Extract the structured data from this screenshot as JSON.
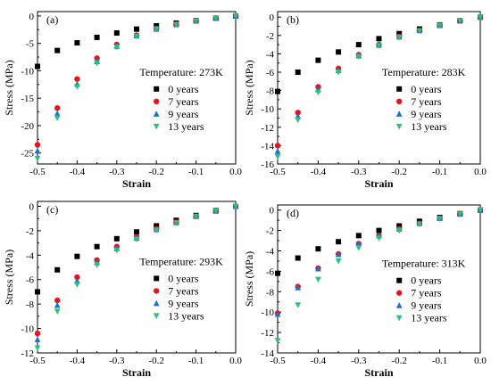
{
  "figure": {
    "series_style": [
      {
        "name": "0 years",
        "color": "#000000",
        "marker": "square"
      },
      {
        "name": "7 years",
        "color": "#e8141c",
        "marker": "circle"
      },
      {
        "name": "9 years",
        "color": "#1f6fd1",
        "marker": "triangle-up"
      },
      {
        "name": "13 years",
        "color": "#2bbf80",
        "marker": "triangle-down"
      }
    ]
  },
  "chart_data": [
    {
      "type": "scatter",
      "panel_label": "(a)",
      "title": "",
      "annotation": "Temperature: 273K",
      "xlabel": "Strain",
      "ylabel": "Stress (MPa)",
      "xlim": [
        -0.5,
        0.0
      ],
      "ylim": [
        -27,
        0.8
      ],
      "xticks": [
        -0.5,
        -0.4,
        -0.3,
        -0.2,
        -0.1,
        0.0
      ],
      "xtick_labels": [
        "-0.5",
        "-0.4",
        "-0.3",
        "-0.2",
        "-0.1",
        "0.0"
      ],
      "yticks": [
        -25,
        -20,
        -15,
        -10,
        -5,
        0
      ],
      "ytick_labels": [
        "-25",
        "-20",
        "-15",
        "-10",
        "-5",
        "0"
      ],
      "legend_position": "right",
      "x": [
        -0.5,
        -0.45,
        -0.4,
        -0.35,
        -0.3,
        -0.25,
        -0.2,
        -0.15,
        -0.1,
        -0.05,
        0.0
      ],
      "series": [
        {
          "name": "0 years",
          "values": [
            -9.2,
            -6.3,
            -4.9,
            -3.9,
            -3.1,
            -2.4,
            -1.8,
            -1.3,
            -0.85,
            -0.4,
            0.0
          ]
        },
        {
          "name": "7 years",
          "values": [
            -23.5,
            -16.8,
            -11.5,
            -7.7,
            -5.2,
            -3.5,
            -2.3,
            -1.5,
            -0.9,
            -0.4,
            0.0
          ]
        },
        {
          "name": "9 years",
          "values": [
            -24.6,
            -17.8,
            -12.4,
            -8.3,
            -5.5,
            -3.6,
            -2.4,
            -1.55,
            -0.9,
            -0.4,
            0.0
          ]
        },
        {
          "name": "13 years",
          "values": [
            -26.0,
            -18.6,
            -12.9,
            -8.6,
            -5.7,
            -3.7,
            -2.4,
            -1.55,
            -0.9,
            -0.4,
            0.0
          ]
        }
      ]
    },
    {
      "type": "scatter",
      "panel_label": "(b)",
      "title": "",
      "annotation": "Temperature: 283K",
      "xlabel": "Strain",
      "ylabel": "Stress (MPa)",
      "xlim": [
        -0.5,
        0.0
      ],
      "ylim": [
        -16,
        0.6
      ],
      "xticks": [
        -0.5,
        -0.4,
        -0.3,
        -0.2,
        -0.1,
        0.0
      ],
      "xtick_labels": [
        "-0.5",
        "-0.4",
        "-0.3",
        "-0.2",
        "-0.1",
        "0.0"
      ],
      "yticks": [
        -16,
        -14,
        -12,
        -10,
        -8,
        -6,
        -4,
        -2,
        0
      ],
      "ytick_labels": [
        "-16",
        "-14",
        "-12",
        "-10",
        "-8",
        "-6",
        "-4",
        "-2",
        "0"
      ],
      "legend_position": "right",
      "x": [
        -0.5,
        -0.45,
        -0.4,
        -0.35,
        -0.3,
        -0.25,
        -0.2,
        -0.15,
        -0.1,
        -0.05,
        0.0
      ],
      "series": [
        {
          "name": "0 years",
          "values": [
            -8.1,
            -6.0,
            -4.7,
            -3.8,
            -3.0,
            -2.35,
            -1.8,
            -1.3,
            -0.85,
            -0.4,
            0.0
          ]
        },
        {
          "name": "7 years",
          "values": [
            -14.0,
            -10.4,
            -7.6,
            -5.6,
            -4.1,
            -3.0,
            -2.1,
            -1.45,
            -0.9,
            -0.4,
            0.0
          ]
        },
        {
          "name": "9 years",
          "values": [
            -14.6,
            -10.8,
            -7.9,
            -5.8,
            -4.2,
            -3.05,
            -2.15,
            -1.45,
            -0.9,
            -0.4,
            0.0
          ]
        },
        {
          "name": "13 years",
          "values": [
            -15.2,
            -11.2,
            -8.2,
            -6.0,
            -4.3,
            -3.1,
            -2.2,
            -1.5,
            -0.9,
            -0.4,
            0.0
          ]
        }
      ]
    },
    {
      "type": "scatter",
      "panel_label": "(c)",
      "title": "",
      "annotation": "Temperature: 293K",
      "xlabel": "Strain",
      "ylabel": "Stress (MPa)",
      "xlim": [
        -0.5,
        0.0
      ],
      "ylim": [
        -12,
        0.4
      ],
      "xticks": [
        -0.5,
        -0.4,
        -0.3,
        -0.2,
        -0.1,
        0.0
      ],
      "xtick_labels": [
        "-0.5",
        "-0.4",
        "-0.3",
        "-0.2",
        "-0.1",
        "0.0"
      ],
      "yticks": [
        -12,
        -10,
        -8,
        -6,
        -4,
        -2,
        0
      ],
      "ytick_labels": [
        "-12",
        "-10",
        "-8",
        "-6",
        "-4",
        "-2",
        "0"
      ],
      "legend_position": "right",
      "x": [
        -0.5,
        -0.45,
        -0.4,
        -0.35,
        -0.3,
        -0.25,
        -0.2,
        -0.15,
        -0.1,
        -0.05,
        0.0
      ],
      "series": [
        {
          "name": "0 years",
          "values": [
            -7.0,
            -5.2,
            -4.1,
            -3.3,
            -2.65,
            -2.1,
            -1.6,
            -1.15,
            -0.75,
            -0.35,
            0.0
          ]
        },
        {
          "name": "7 years",
          "values": [
            -10.4,
            -7.7,
            -5.8,
            -4.4,
            -3.3,
            -2.5,
            -1.85,
            -1.3,
            -0.8,
            -0.38,
            0.0
          ]
        },
        {
          "name": "9 years",
          "values": [
            -10.9,
            -8.1,
            -6.1,
            -4.6,
            -3.45,
            -2.6,
            -1.9,
            -1.33,
            -0.82,
            -0.38,
            0.0
          ]
        },
        {
          "name": "13 years",
          "values": [
            -11.6,
            -8.6,
            -6.4,
            -4.8,
            -3.6,
            -2.7,
            -1.95,
            -1.35,
            -0.83,
            -0.38,
            0.0
          ]
        }
      ]
    },
    {
      "type": "scatter",
      "panel_label": "(d)",
      "title": "",
      "annotation": "Temperature: 313K",
      "xlabel": "Strain",
      "ylabel": "Stress (MPa)",
      "xlim": [
        -0.5,
        0.0
      ],
      "ylim": [
        -14,
        0.5
      ],
      "xticks": [
        -0.5,
        -0.4,
        -0.3,
        -0.2,
        -0.1,
        0.0
      ],
      "xtick_labels": [
        "-0.5",
        "-0.4",
        "-0.3",
        "-0.2",
        "-0.1",
        "0.0"
      ],
      "yticks": [
        -14,
        -12,
        -10,
        -8,
        -6,
        -4,
        -2,
        0
      ],
      "ytick_labels": [
        "-14",
        "-12",
        "-10",
        "-8",
        "-6",
        "-4",
        "-2",
        "0"
      ],
      "legend_position": "right",
      "x": [
        -0.5,
        -0.45,
        -0.4,
        -0.35,
        -0.3,
        -0.25,
        -0.2,
        -0.15,
        -0.1,
        -0.05,
        0.0
      ],
      "series": [
        {
          "name": "0 years",
          "values": [
            -6.2,
            -4.7,
            -3.8,
            -3.1,
            -2.5,
            -2.0,
            -1.55,
            -1.1,
            -0.72,
            -0.35,
            0.0
          ]
        },
        {
          "name": "7 years",
          "values": [
            -10.1,
            -7.5,
            -5.7,
            -4.3,
            -3.3,
            -2.5,
            -1.85,
            -1.3,
            -0.8,
            -0.38,
            0.0
          ]
        },
        {
          "name": "9 years",
          "values": [
            -10.2,
            -7.6,
            -5.75,
            -4.35,
            -3.3,
            -2.5,
            -1.85,
            -1.3,
            -0.8,
            -0.38,
            0.0
          ]
        },
        {
          "name": "13 years",
          "values": [
            -12.8,
            -9.3,
            -6.8,
            -5.0,
            -3.7,
            -2.75,
            -2.0,
            -1.38,
            -0.84,
            -0.4,
            0.0
          ]
        }
      ]
    }
  ]
}
